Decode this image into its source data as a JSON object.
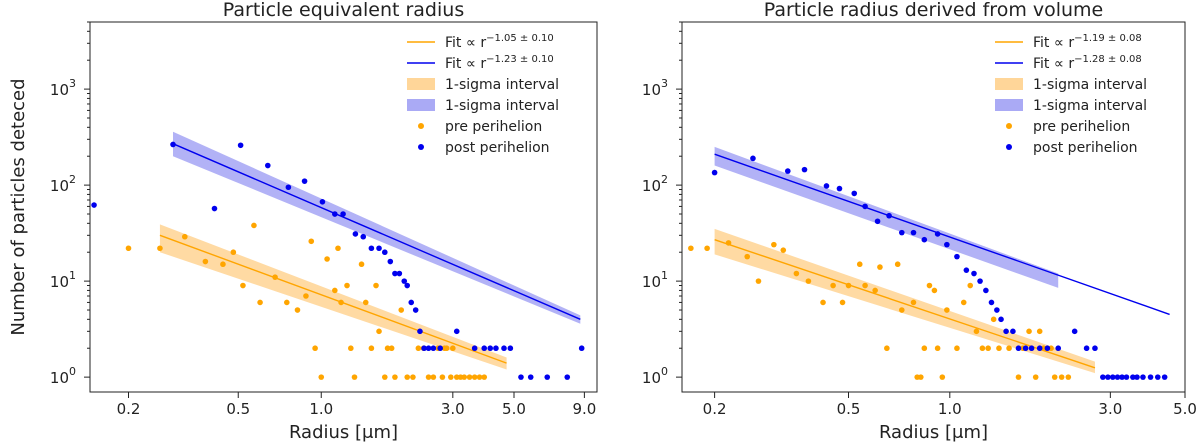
{
  "chart_data": [
    {
      "type": "scatter",
      "title": "Particle equivalent radius",
      "xlabel": "Radius [μm]",
      "ylabel": "Number of particles deteced",
      "xscale": "log",
      "yscale": "log",
      "xlim": [
        0.145,
        10.0
      ],
      "ylim": [
        0.7,
        5000
      ],
      "xticks": [
        0.2,
        0.5,
        1.0,
        3.0,
        5.0,
        9.0
      ],
      "xtick_labels": [
        "0.2",
        "0.5",
        "1.0",
        "3.0",
        "5.0",
        "9.0"
      ],
      "yticks": [
        1,
        10,
        100,
        1000
      ],
      "ytick_exponents": [
        "0",
        "1",
        "2",
        "3"
      ],
      "ytick_base": "10",
      "legend_position": "top-right",
      "colors": {
        "pre": "#FFA500",
        "post": "#0000EE",
        "pre_band": "#FFD699",
        "post_band": "#AAAAF5"
      },
      "fits": [
        {
          "name": "Fit",
          "prefix": "∝ r",
          "exponent": "−1.05 ± 0.10",
          "color": "#FFA500",
          "x": [
            0.26,
            4.7
          ],
          "y": [
            30,
            1.4
          ]
        },
        {
          "name": "Fit",
          "prefix": "∝ r",
          "exponent": "−1.23 ± 0.10",
          "color": "#0000EE",
          "x": [
            0.29,
            8.7
          ],
          "y": [
            270,
            4.0
          ]
        }
      ],
      "bands": [
        {
          "label": "1-sigma interval",
          "color": "#FFD699",
          "x": [
            0.26,
            4.7
          ],
          "lower": [
            20,
            1.2
          ],
          "upper": [
            39,
            1.6
          ]
        },
        {
          "label": "1-sigma interval",
          "color": "#AAAAF5",
          "x": [
            0.29,
            8.7
          ],
          "lower": [
            200,
            3.6
          ],
          "upper": [
            360,
            4.4
          ]
        }
      ],
      "series": [
        {
          "name": "pre perihelion",
          "color": "#FFA500",
          "points": [
            [
              0.2,
              22
            ],
            [
              0.26,
              22
            ],
            [
              0.32,
              29
            ],
            [
              0.38,
              16
            ],
            [
              0.44,
              15
            ],
            [
              0.48,
              20
            ],
            [
              0.52,
              9
            ],
            [
              0.57,
              38
            ],
            [
              0.6,
              6
            ],
            [
              0.68,
              11
            ],
            [
              0.75,
              6
            ],
            [
              0.82,
              5
            ],
            [
              0.88,
              7
            ],
            [
              0.92,
              26
            ],
            [
              0.95,
              2
            ],
            [
              1.0,
              1
            ],
            [
              1.05,
              17
            ],
            [
              1.12,
              8
            ],
            [
              1.15,
              22
            ],
            [
              1.18,
              6
            ],
            [
              1.24,
              9
            ],
            [
              1.28,
              2
            ],
            [
              1.32,
              1
            ],
            [
              1.4,
              15
            ],
            [
              1.45,
              6
            ],
            [
              1.52,
              2
            ],
            [
              1.58,
              9
            ],
            [
              1.62,
              3
            ],
            [
              1.7,
              1
            ],
            [
              1.74,
              2
            ],
            [
              1.8,
              2
            ],
            [
              1.85,
              1
            ],
            [
              1.95,
              5
            ],
            [
              2.05,
              1
            ],
            [
              2.15,
              1
            ],
            [
              2.25,
              2
            ],
            [
              2.35,
              2
            ],
            [
              2.45,
              1
            ],
            [
              2.55,
              1
            ],
            [
              2.65,
              2
            ],
            [
              2.75,
              1
            ],
            [
              2.8,
              2
            ],
            [
              2.85,
              2
            ],
            [
              2.95,
              1
            ],
            [
              3.0,
              2
            ],
            [
              3.1,
              1
            ],
            [
              3.2,
              1
            ],
            [
              3.3,
              1
            ],
            [
              3.45,
              1
            ],
            [
              3.6,
              1
            ],
            [
              3.75,
              1
            ],
            [
              3.9,
              1
            ]
          ]
        },
        {
          "name": "post perihelion",
          "color": "#0000EE",
          "points": [
            [
              0.15,
              62
            ],
            [
              0.29,
              265
            ],
            [
              0.41,
              57
            ],
            [
              0.51,
              260
            ],
            [
              0.64,
              160
            ],
            [
              0.76,
              95
            ],
            [
              0.87,
              110
            ],
            [
              1.01,
              67
            ],
            [
              1.12,
              50
            ],
            [
              1.2,
              50
            ],
            [
              1.33,
              31
            ],
            [
              1.42,
              29
            ],
            [
              1.52,
              22
            ],
            [
              1.62,
              22
            ],
            [
              1.7,
              20
            ],
            [
              1.78,
              16
            ],
            [
              1.85,
              12
            ],
            [
              1.92,
              12
            ],
            [
              2.0,
              10
            ],
            [
              2.05,
              9
            ],
            [
              2.12,
              6
            ],
            [
              2.2,
              5
            ],
            [
              2.28,
              3
            ],
            [
              2.36,
              2
            ],
            [
              2.45,
              2
            ],
            [
              2.55,
              2
            ],
            [
              2.7,
              2
            ],
            [
              3.1,
              3
            ],
            [
              3.6,
              2
            ],
            [
              3.9,
              2
            ],
            [
              4.1,
              2
            ],
            [
              4.3,
              2
            ],
            [
              4.6,
              2
            ],
            [
              4.85,
              2
            ],
            [
              5.3,
              1
            ],
            [
              5.75,
              1
            ],
            [
              6.6,
              1
            ],
            [
              7.8,
              1
            ],
            [
              8.8,
              2
            ]
          ]
        }
      ]
    },
    {
      "type": "scatter",
      "title": "Particle radius derived from volume",
      "xlabel": "Radius [μm]",
      "ylabel": "",
      "xscale": "log",
      "yscale": "log",
      "xlim": [
        0.16,
        5.0
      ],
      "ylim": [
        0.7,
        5000
      ],
      "xticks": [
        0.2,
        0.5,
        1.0,
        3.0,
        5.0
      ],
      "xtick_labels": [
        "0.2",
        "0.5",
        "1.0",
        "3.0",
        "5.0"
      ],
      "yticks": [
        1,
        10,
        100,
        1000
      ],
      "ytick_exponents": [
        "0",
        "1",
        "2",
        "3"
      ],
      "ytick_base": "10",
      "legend_position": "top-right",
      "colors": {
        "pre": "#FFA500",
        "post": "#0000EE",
        "pre_band": "#FFD699",
        "post_band": "#AAAAF5"
      },
      "fits": [
        {
          "name": "Fit",
          "prefix": "∝ r",
          "exponent": "−1.19 ± 0.08",
          "color": "#FFA500",
          "x": [
            0.2,
            2.7
          ],
          "y": [
            27,
            1.25
          ]
        },
        {
          "name": "Fit",
          "prefix": "∝ r",
          "exponent": "−1.28 ± 0.08",
          "color": "#0000EE",
          "x": [
            0.2,
            4.5
          ],
          "y": [
            210,
            4.5
          ]
        }
      ],
      "bands": [
        {
          "label": "1-sigma interval",
          "color": "#FFD699",
          "x": [
            0.2,
            2.7
          ],
          "lower": [
            19,
            1.1
          ],
          "upper": [
            35,
            1.45
          ]
        },
        {
          "label": "1-sigma interval",
          "color": "#AAAAF5",
          "x": [
            0.2,
            2.1
          ],
          "lower": [
            160,
            8.5
          ],
          "upper": [
            250,
            12
          ]
        }
      ],
      "series": [
        {
          "name": "pre perihelion",
          "color": "#FFA500",
          "points": [
            [
              0.17,
              22
            ],
            [
              0.19,
              22
            ],
            [
              0.22,
              25
            ],
            [
              0.25,
              18
            ],
            [
              0.27,
              10
            ],
            [
              0.3,
              24
            ],
            [
              0.32,
              21
            ],
            [
              0.35,
              12
            ],
            [
              0.38,
              10
            ],
            [
              0.42,
              6
            ],
            [
              0.45,
              9
            ],
            [
              0.48,
              6
            ],
            [
              0.5,
              9
            ],
            [
              0.54,
              15
            ],
            [
              0.56,
              9
            ],
            [
              0.6,
              8
            ],
            [
              0.62,
              14
            ],
            [
              0.65,
              2
            ],
            [
              0.7,
              15
            ],
            [
              0.72,
              5
            ],
            [
              0.78,
              6
            ],
            [
              0.8,
              1
            ],
            [
              0.82,
              1
            ],
            [
              0.84,
              2
            ],
            [
              0.87,
              9
            ],
            [
              0.9,
              8
            ],
            [
              0.92,
              2
            ],
            [
              0.95,
              1
            ],
            [
              0.98,
              5
            ],
            [
              1.05,
              2
            ],
            [
              1.1,
              6
            ],
            [
              1.15,
              9
            ],
            [
              1.2,
              3
            ],
            [
              1.25,
              2
            ],
            [
              1.3,
              2
            ],
            [
              1.35,
              4
            ],
            [
              1.4,
              2
            ],
            [
              1.5,
              2
            ],
            [
              1.6,
              1
            ],
            [
              1.65,
              2
            ],
            [
              1.72,
              3
            ],
            [
              1.8,
              1
            ],
            [
              1.85,
              3
            ],
            [
              1.9,
              2
            ],
            [
              2.0,
              2
            ],
            [
              2.05,
              1
            ],
            [
              2.15,
              1
            ],
            [
              2.25,
              1
            ]
          ]
        },
        {
          "name": "post perihelion",
          "color": "#0000EE",
          "points": [
            [
              0.2,
              135
            ],
            [
              0.26,
              190
            ],
            [
              0.33,
              140
            ],
            [
              0.37,
              145
            ],
            [
              0.43,
              98
            ],
            [
              0.47,
              92
            ],
            [
              0.52,
              82
            ],
            [
              0.56,
              60
            ],
            [
              0.61,
              42
            ],
            [
              0.66,
              48
            ],
            [
              0.72,
              32
            ],
            [
              0.78,
              32
            ],
            [
              0.84,
              27
            ],
            [
              0.92,
              31
            ],
            [
              0.98,
              24
            ],
            [
              1.05,
              18
            ],
            [
              1.12,
              13
            ],
            [
              1.18,
              12
            ],
            [
              1.23,
              10
            ],
            [
              1.28,
              8
            ],
            [
              1.33,
              6
            ],
            [
              1.38,
              5
            ],
            [
              1.42,
              4
            ],
            [
              1.47,
              3
            ],
            [
              1.54,
              3
            ],
            [
              1.6,
              2
            ],
            [
              1.68,
              2
            ],
            [
              1.75,
              2
            ],
            [
              1.85,
              2
            ],
            [
              1.95,
              2
            ],
            [
              2.1,
              2
            ],
            [
              2.35,
              3
            ],
            [
              2.55,
              2
            ],
            [
              2.7,
              2
            ],
            [
              2.85,
              1
            ],
            [
              2.95,
              1
            ],
            [
              3.05,
              1
            ],
            [
              3.15,
              1
            ],
            [
              3.25,
              1
            ],
            [
              3.35,
              1
            ],
            [
              3.5,
              1
            ],
            [
              3.6,
              1
            ],
            [
              3.75,
              1
            ],
            [
              3.95,
              1
            ],
            [
              4.15,
              1
            ],
            [
              4.35,
              1
            ]
          ]
        }
      ]
    }
  ],
  "legend": {
    "band_label": "1-sigma interval",
    "pre_label": "pre perihelion",
    "post_label": "post perihelion",
    "fit_label": "Fit"
  }
}
